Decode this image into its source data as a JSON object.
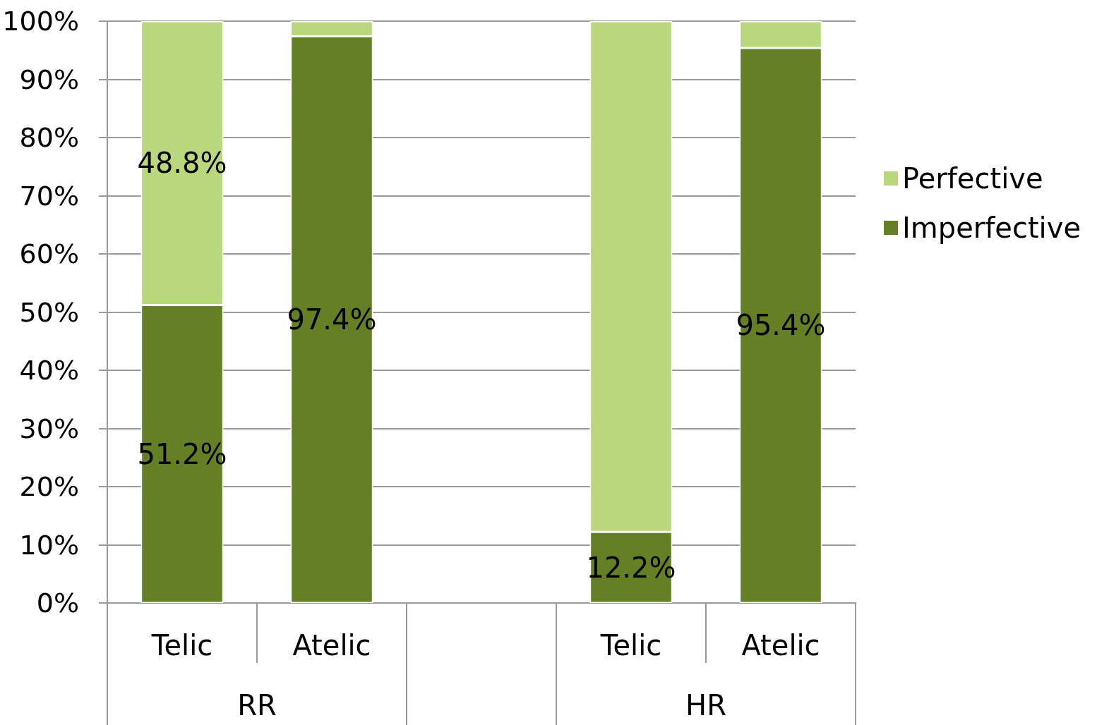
{
  "chart_data": {
    "type": "bar",
    "stacked": true,
    "categories": [
      "Telic",
      "Atelic",
      null,
      "Telic",
      "Atelic"
    ],
    "series": [
      {
        "name": "Imperfective",
        "color": "#647f24",
        "values": [
          51.2,
          97.4,
          null,
          12.2,
          95.4
        ],
        "value_labels": [
          "51.2%",
          "97.4%",
          null,
          "12.2%",
          "95.4%"
        ]
      },
      {
        "name": "Perfective",
        "color": "#b9d77d",
        "values": [
          48.8,
          2.6,
          null,
          87.8,
          4.6
        ],
        "value_labels": [
          "48.8%",
          null,
          null,
          null,
          null
        ]
      }
    ],
    "ylim": [
      0,
      100
    ],
    "yticks": [
      {
        "value": 0,
        "label": "0%"
      },
      {
        "value": 10,
        "label": "10%"
      },
      {
        "value": 20,
        "label": "20%"
      },
      {
        "value": 30,
        "label": "30%"
      },
      {
        "value": 40,
        "label": "40%"
      },
      {
        "value": 50,
        "label": "50%"
      },
      {
        "value": 60,
        "label": "60%"
      },
      {
        "value": 70,
        "label": "70%"
      },
      {
        "value": 80,
        "label": "80%"
      },
      {
        "value": 90,
        "label": "90%"
      },
      {
        "value": 100,
        "label": "100%"
      }
    ],
    "grid": "y",
    "legend": "right",
    "annotations": [
      "RR",
      "HR"
    ]
  }
}
